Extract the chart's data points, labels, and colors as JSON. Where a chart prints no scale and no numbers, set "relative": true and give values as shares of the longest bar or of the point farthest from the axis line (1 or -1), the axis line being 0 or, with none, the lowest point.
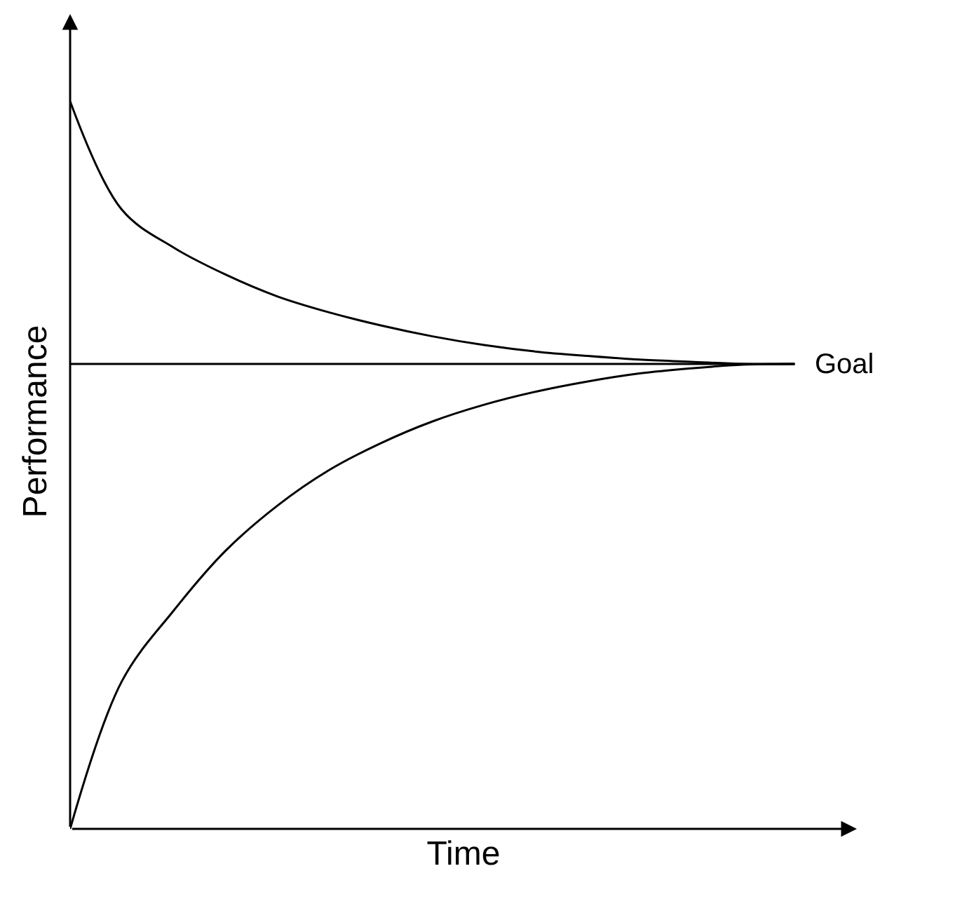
{
  "chart_data": {
    "type": "line",
    "relative": true,
    "xlabel": "Time",
    "ylabel": "Performance",
    "categories": [
      null,
      null,
      null,
      null,
      null,
      null,
      null,
      null,
      null,
      null,
      null,
      null,
      null,
      null,
      null
    ],
    "series": [
      {
        "color": "#000000",
        "values": [
          1,
          0.851,
          0.799,
          0.762,
          0.732,
          0.71,
          0.692,
          0.677,
          0.665,
          0.656,
          0.65,
          0.645,
          0.642,
          0.639,
          0.639
        ]
      },
      {
        "color": "#000000",
        "values": [
          0,
          0.203,
          0.3,
          0.382,
          0.444,
          0.493,
          0.53,
          0.56,
          0.583,
          0.601,
          0.615,
          0.626,
          0.633,
          0.638,
          0.639
        ]
      }
    ],
    "ref_lines": [
      {
        "axis": "y",
        "value": 0.639,
        "label": "Goal",
        "color": "#000000"
      }
    ],
    "marker": "none",
    "line_style": "solid"
  }
}
